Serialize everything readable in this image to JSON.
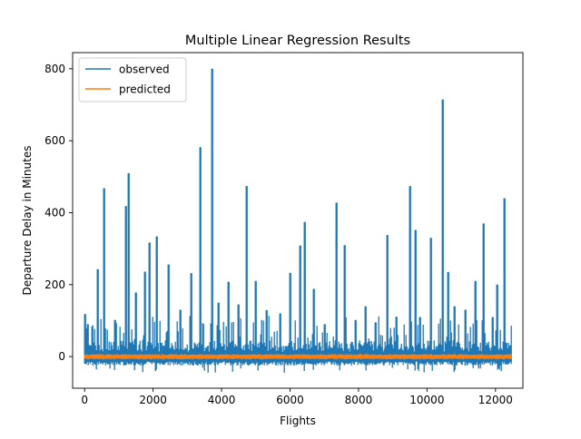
{
  "chart_data": {
    "type": "line",
    "title": "Multiple Linear Regression Results",
    "xlabel": "Flights",
    "ylabel": "Departure Delay in Minutes",
    "xlim": [
      -350,
      12800
    ],
    "ylim": [
      -88,
      845
    ],
    "x_ticks": [
      0,
      2000,
      4000,
      6000,
      8000,
      10000,
      12000
    ],
    "y_ticks": [
      0,
      200,
      400,
      600,
      800
    ],
    "x_tick_labels": [
      "0",
      "2000",
      "4000",
      "6000",
      "8000",
      "10000",
      "12000"
    ],
    "y_tick_labels": [
      "0",
      "200",
      "400",
      "600",
      "800"
    ],
    "legend_position": "upper-left",
    "n_points": 12450,
    "series": [
      {
        "name": "observed",
        "color": "#1f77b4",
        "baseline_range": [
          -25,
          45
        ],
        "peaks": [
          {
            "x": 20,
            "y": 118
          },
          {
            "x": 100,
            "y": 90
          },
          {
            "x": 380,
            "y": 243
          },
          {
            "x": 560,
            "y": 468
          },
          {
            "x": 900,
            "y": 102
          },
          {
            "x": 1200,
            "y": 418
          },
          {
            "x": 1280,
            "y": 510
          },
          {
            "x": 1500,
            "y": 178
          },
          {
            "x": 1770,
            "y": 236
          },
          {
            "x": 1900,
            "y": 317
          },
          {
            "x": 2100,
            "y": 334
          },
          {
            "x": 2450,
            "y": 256
          },
          {
            "x": 2800,
            "y": 130
          },
          {
            "x": 3100,
            "y": 232
          },
          {
            "x": 3380,
            "y": 582
          },
          {
            "x": 3720,
            "y": 800
          },
          {
            "x": 3900,
            "y": 150
          },
          {
            "x": 4200,
            "y": 208
          },
          {
            "x": 4500,
            "y": 145
          },
          {
            "x": 4720,
            "y": 474
          },
          {
            "x": 5000,
            "y": 210
          },
          {
            "x": 5300,
            "y": 129
          },
          {
            "x": 5700,
            "y": 120
          },
          {
            "x": 6000,
            "y": 233
          },
          {
            "x": 6280,
            "y": 309
          },
          {
            "x": 6430,
            "y": 374
          },
          {
            "x": 6700,
            "y": 188
          },
          {
            "x": 7000,
            "y": 90
          },
          {
            "x": 7350,
            "y": 428
          },
          {
            "x": 7600,
            "y": 310
          },
          {
            "x": 7900,
            "y": 102
          },
          {
            "x": 8200,
            "y": 140
          },
          {
            "x": 8500,
            "y": 95
          },
          {
            "x": 8830,
            "y": 338
          },
          {
            "x": 9100,
            "y": 102
          },
          {
            "x": 9500,
            "y": 474
          },
          {
            "x": 9650,
            "y": 352
          },
          {
            "x": 9800,
            "y": 110
          },
          {
            "x": 10100,
            "y": 330
          },
          {
            "x": 10460,
            "y": 715
          },
          {
            "x": 10620,
            "y": 235
          },
          {
            "x": 10800,
            "y": 140
          },
          {
            "x": 11100,
            "y": 130
          },
          {
            "x": 11400,
            "y": 210
          },
          {
            "x": 11650,
            "y": 370
          },
          {
            "x": 11900,
            "y": 110
          },
          {
            "x": 12050,
            "y": 200
          },
          {
            "x": 12250,
            "y": 440
          }
        ]
      },
      {
        "name": "predicted",
        "color": "#ff7f0e",
        "range": [
          -8,
          7
        ]
      }
    ]
  }
}
